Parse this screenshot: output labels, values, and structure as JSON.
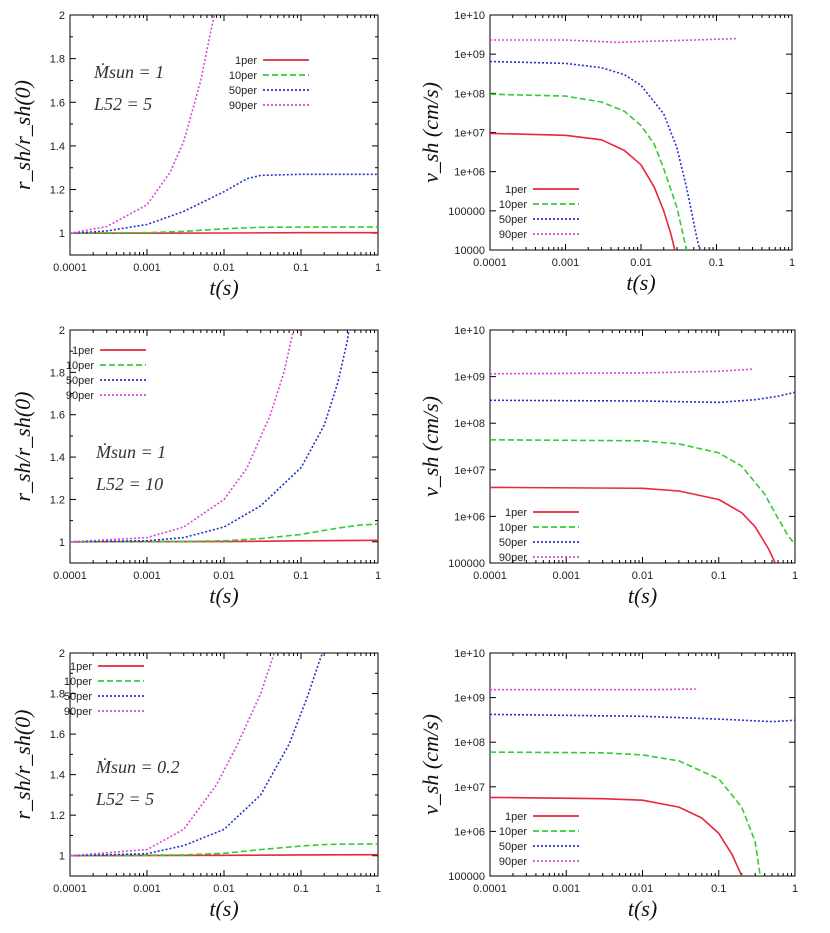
{
  "chart_data": [
    {
      "type": "line",
      "ylabel": "r_sh/r_sh(0)",
      "xlabel": "t(s)",
      "xscale": "log",
      "yscale": "linear",
      "xlim": [
        0.0001,
        1
      ],
      "ylim": [
        0.9,
        2
      ],
      "xticks": [
        "0.0001",
        "0.001",
        "0.01",
        "0.1",
        "1"
      ],
      "yticks": [
        "1",
        "1.2",
        "1.4",
        "1.6",
        "1.8",
        "2"
      ],
      "annotation": [
        "Ṁsun = 1",
        "L52 = 5"
      ],
      "legend": "top-right",
      "series": [
        {
          "name": "1per",
          "color": "#e8283c",
          "dash": "solid",
          "points": [
            [
              0.0001,
              1.0
            ],
            [
              0.001,
              1.0
            ],
            [
              0.01,
              1.001
            ],
            [
              0.1,
              1.002
            ],
            [
              1,
              1.002
            ]
          ]
        },
        {
          "name": "10per",
          "color": "#33cc33",
          "dash": "dash",
          "points": [
            [
              0.0001,
              1.0
            ],
            [
              0.001,
              1.002
            ],
            [
              0.003,
              1.008
            ],
            [
              0.01,
              1.02
            ],
            [
              0.03,
              1.027
            ],
            [
              0.1,
              1.028
            ],
            [
              1,
              1.028
            ]
          ]
        },
        {
          "name": "50per",
          "color": "#2233cc",
          "dash": "dot",
          "points": [
            [
              0.0001,
              1.0
            ],
            [
              0.0003,
              1.01
            ],
            [
              0.001,
              1.04
            ],
            [
              0.003,
              1.1
            ],
            [
              0.01,
              1.19
            ],
            [
              0.02,
              1.25
            ],
            [
              0.03,
              1.265
            ],
            [
              0.1,
              1.27
            ],
            [
              1,
              1.27
            ]
          ]
        },
        {
          "name": "90per",
          "color": "#dd44dd",
          "dash": "dot",
          "points": [
            [
              0.0001,
              1.0
            ],
            [
              0.0003,
              1.03
            ],
            [
              0.001,
              1.13
            ],
            [
              0.002,
              1.28
            ],
            [
              0.003,
              1.42
            ],
            [
              0.005,
              1.7
            ],
            [
              0.0065,
              1.9
            ],
            [
              0.0075,
              2.0
            ]
          ]
        }
      ]
    },
    {
      "type": "line",
      "ylabel": "v_sh (cm/s)",
      "xlabel": "t(s)",
      "xscale": "log",
      "yscale": "log",
      "xlim": [
        0.0001,
        1
      ],
      "ylim": [
        10000,
        10000000000
      ],
      "xticks": [
        "0.0001",
        "0.001",
        "0.01",
        "0.1",
        "1"
      ],
      "yticks": [
        "10000",
        "100000",
        "1e+06",
        "1e+07",
        "1e+08",
        "1e+09",
        "1e+10"
      ],
      "legend": "bottom-left",
      "series": [
        {
          "name": "1per",
          "color": "#e8283c",
          "dash": "solid",
          "points": [
            [
              0.0001,
              9500000.0
            ],
            [
              0.001,
              8500000.0
            ],
            [
              0.003,
              6500000.0
            ],
            [
              0.006,
              3500000.0
            ],
            [
              0.01,
              1500000.0
            ],
            [
              0.015,
              400000.0
            ],
            [
              0.02,
              100000.0
            ],
            [
              0.025,
              25000.0
            ],
            [
              0.028,
              10000.0
            ]
          ]
        },
        {
          "name": "10per",
          "color": "#33cc33",
          "dash": "dash",
          "points": [
            [
              0.0001,
              95000000.0
            ],
            [
              0.001,
              85000000.0
            ],
            [
              0.003,
              60000000.0
            ],
            [
              0.006,
              35000000.0
            ],
            [
              0.01,
              15000000.0
            ],
            [
              0.015,
              5000000.0
            ],
            [
              0.02,
              1200000.0
            ],
            [
              0.03,
              120000.0
            ],
            [
              0.04,
              10000.0
            ]
          ]
        },
        {
          "name": "50per",
          "color": "#2233cc",
          "dash": "dot",
          "points": [
            [
              0.0001,
              650000000.0
            ],
            [
              0.001,
              580000000.0
            ],
            [
              0.003,
              450000000.0
            ],
            [
              0.006,
              300000000.0
            ],
            [
              0.01,
              160000000.0
            ],
            [
              0.02,
              30000000.0
            ],
            [
              0.03,
              4000000.0
            ],
            [
              0.04,
              400000.0
            ],
            [
              0.055,
              20000.0
            ],
            [
              0.06,
              10000.0
            ]
          ]
        },
        {
          "name": "90per",
          "color": "#dd44dd",
          "dash": "dot",
          "points": [
            [
              0.0001,
              2300000000.0
            ],
            [
              0.001,
              2300000000.0
            ],
            [
              0.005,
              2000000000.0
            ],
            [
              0.01,
              2100000000.0
            ],
            [
              0.05,
              2300000000.0
            ],
            [
              0.18,
              2500000000.0
            ]
          ]
        }
      ]
    },
    {
      "type": "line",
      "ylabel": "r_sh/r_sh(0)",
      "xlabel": "t(s)",
      "xscale": "log",
      "yscale": "linear",
      "xlim": [
        0.0001,
        1
      ],
      "ylim": [
        0.9,
        2
      ],
      "xticks": [
        "0.0001",
        "0.001",
        "0.01",
        "0.1",
        "1"
      ],
      "yticks": [
        "1",
        "1.2",
        "1.4",
        "1.6",
        "1.8",
        "2"
      ],
      "annotation": [
        "Ṁsun = 1",
        "L52 = 10"
      ],
      "legend": "top-left",
      "series": [
        {
          "name": "1per",
          "color": "#e8283c",
          "dash": "solid",
          "points": [
            [
              0.0001,
              1.0
            ],
            [
              0.01,
              1.001
            ],
            [
              0.1,
              1.005
            ],
            [
              1,
              1.007
            ]
          ]
        },
        {
          "name": "10per",
          "color": "#33cc33",
          "dash": "dash",
          "points": [
            [
              0.0001,
              1.0
            ],
            [
              0.003,
              1.002
            ],
            [
              0.01,
              1.005
            ],
            [
              0.03,
              1.015
            ],
            [
              0.1,
              1.035
            ],
            [
              0.3,
              1.065
            ],
            [
              0.6,
              1.08
            ],
            [
              1,
              1.083
            ]
          ]
        },
        {
          "name": "50per",
          "color": "#2233cc",
          "dash": "dot",
          "points": [
            [
              0.0001,
              1.0
            ],
            [
              0.001,
              1.005
            ],
            [
              0.003,
              1.02
            ],
            [
              0.01,
              1.07
            ],
            [
              0.03,
              1.17
            ],
            [
              0.1,
              1.35
            ],
            [
              0.2,
              1.55
            ],
            [
              0.3,
              1.75
            ],
            [
              0.4,
              1.95
            ],
            [
              0.42,
              2.0
            ]
          ]
        },
        {
          "name": "90per",
          "color": "#dd44dd",
          "dash": "dot",
          "points": [
            [
              0.0001,
              1.0
            ],
            [
              0.001,
              1.02
            ],
            [
              0.003,
              1.07
            ],
            [
              0.01,
              1.2
            ],
            [
              0.02,
              1.35
            ],
            [
              0.04,
              1.6
            ],
            [
              0.06,
              1.8
            ],
            [
              0.08,
              2.0
            ]
          ]
        }
      ]
    },
    {
      "type": "line",
      "ylabel": "v_sh (cm/s)",
      "xlabel": "t(s)",
      "xscale": "log",
      "yscale": "log",
      "xlim": [
        0.0001,
        1
      ],
      "ylim": [
        100000,
        10000000000
      ],
      "xticks": [
        "0.0001",
        "0.001",
        "0.01",
        "0.1",
        "1"
      ],
      "yticks": [
        "100000",
        "1e+06",
        "1e+07",
        "1e+08",
        "1e+09",
        "1e+10"
      ],
      "legend": "bottom-left",
      "series": [
        {
          "name": "1per",
          "color": "#e8283c",
          "dash": "solid",
          "points": [
            [
              0.0001,
              4200000.0
            ],
            [
              0.01,
              4000000.0
            ],
            [
              0.03,
              3500000.0
            ],
            [
              0.1,
              2300000.0
            ],
            [
              0.2,
              1200000.0
            ],
            [
              0.3,
              600000.0
            ],
            [
              0.45,
              200000.0
            ],
            [
              0.55,
              100000.0
            ]
          ]
        },
        {
          "name": "10per",
          "color": "#33cc33",
          "dash": "dash",
          "points": [
            [
              0.0001,
              44000000.0
            ],
            [
              0.01,
              42000000.0
            ],
            [
              0.03,
              36000000.0
            ],
            [
              0.1,
              23000000.0
            ],
            [
              0.2,
              12000000.0
            ],
            [
              0.4,
              3000000.0
            ],
            [
              0.6,
              900000.0
            ],
            [
              0.8,
              400000.0
            ],
            [
              1,
              250000.0
            ]
          ]
        },
        {
          "name": "50per",
          "color": "#2233cc",
          "dash": "dot",
          "points": [
            [
              0.0001,
              310000000.0
            ],
            [
              0.01,
              300000000.0
            ],
            [
              0.1,
              280000000.0
            ],
            [
              0.3,
              320000000.0
            ],
            [
              0.6,
              380000000.0
            ],
            [
              1,
              460000000.0
            ]
          ]
        },
        {
          "name": "90per",
          "color": "#dd44dd",
          "dash": "dot",
          "points": [
            [
              0.0001,
              1150000000.0
            ],
            [
              0.01,
              1200000000.0
            ],
            [
              0.1,
              1300000000.0
            ],
            [
              0.28,
              1450000000.0
            ]
          ]
        }
      ]
    },
    {
      "type": "line",
      "ylabel": "r_sh/r_sh(0)",
      "xlabel": "t(s)",
      "xscale": "log",
      "yscale": "linear",
      "xlim": [
        0.0001,
        1
      ],
      "ylim": [
        0.9,
        2
      ],
      "xticks": [
        "0.0001",
        "0.001",
        "0.01",
        "0.1",
        "1"
      ],
      "yticks": [
        "1",
        "1.2",
        "1.4",
        "1.6",
        "1.8",
        "2"
      ],
      "annotation": [
        "Ṁsun = 0.2",
        "L52 = 5"
      ],
      "legend": "top-left",
      "series": [
        {
          "name": "1per",
          "color": "#e8283c",
          "dash": "solid",
          "points": [
            [
              0.0001,
              1.0
            ],
            [
              0.01,
              1.002
            ],
            [
              0.1,
              1.004
            ],
            [
              1,
              1.005
            ]
          ]
        },
        {
          "name": "10per",
          "color": "#33cc33",
          "dash": "dash",
          "points": [
            [
              0.0001,
              1.0
            ],
            [
              0.003,
              1.004
            ],
            [
              0.01,
              1.012
            ],
            [
              0.03,
              1.03
            ],
            [
              0.1,
              1.048
            ],
            [
              0.2,
              1.055
            ],
            [
              0.3,
              1.057
            ],
            [
              1,
              1.058
            ]
          ]
        },
        {
          "name": "50per",
          "color": "#2233cc",
          "dash": "dot",
          "points": [
            [
              0.0001,
              1.0
            ],
            [
              0.001,
              1.01
            ],
            [
              0.003,
              1.05
            ],
            [
              0.01,
              1.13
            ],
            [
              0.03,
              1.3
            ],
            [
              0.07,
              1.55
            ],
            [
              0.12,
              1.78
            ],
            [
              0.17,
              1.95
            ],
            [
              0.19,
              2.0
            ]
          ]
        },
        {
          "name": "90per",
          "color": "#dd44dd",
          "dash": "dot",
          "points": [
            [
              0.0001,
              1.0
            ],
            [
              0.001,
              1.03
            ],
            [
              0.003,
              1.13
            ],
            [
              0.008,
              1.35
            ],
            [
              0.015,
              1.55
            ],
            [
              0.03,
              1.8
            ],
            [
              0.045,
              2.0
            ]
          ]
        }
      ]
    },
    {
      "type": "line",
      "ylabel": "v_sh (cm/s)",
      "xlabel": "t(s)",
      "xscale": "log",
      "yscale": "log",
      "xlim": [
        0.0001,
        1
      ],
      "ylim": [
        100000,
        10000000000
      ],
      "xticks": [
        "0.0001",
        "0.001",
        "0.01",
        "0.1",
        "1"
      ],
      "yticks": [
        "100000",
        "1e+06",
        "1e+07",
        "1e+08",
        "1e+09",
        "1e+10"
      ],
      "legend": "bottom-left",
      "series": [
        {
          "name": "1per",
          "color": "#e8283c",
          "dash": "solid",
          "points": [
            [
              0.0001,
              5800000.0
            ],
            [
              0.003,
              5400000.0
            ],
            [
              0.01,
              5000000.0
            ],
            [
              0.03,
              3500000.0
            ],
            [
              0.06,
              2000000.0
            ],
            [
              0.1,
              900000.0
            ],
            [
              0.15,
              300000.0
            ],
            [
              0.2,
              100000.0
            ]
          ]
        },
        {
          "name": "10per",
          "color": "#33cc33",
          "dash": "dash",
          "points": [
            [
              0.0001,
              60000000.0
            ],
            [
              0.003,
              58000000.0
            ],
            [
              0.01,
              52000000.0
            ],
            [
              0.03,
              38000000.0
            ],
            [
              0.1,
              15000000.0
            ],
            [
              0.2,
              3500000.0
            ],
            [
              0.3,
              600000.0
            ],
            [
              0.35,
              100000.0
            ]
          ]
        },
        {
          "name": "50per",
          "color": "#2233cc",
          "dash": "dot",
          "points": [
            [
              0.0001,
              420000000.0
            ],
            [
              0.01,
              380000000.0
            ],
            [
              0.1,
              330000000.0
            ],
            [
              0.5,
              290000000.0
            ],
            [
              1,
              310000000.0
            ]
          ]
        },
        {
          "name": "90per",
          "color": "#dd44dd",
          "dash": "dot",
          "points": [
            [
              0.0001,
              1500000000.0
            ],
            [
              0.01,
              1500000000.0
            ],
            [
              0.05,
              1550000000.0
            ]
          ]
        }
      ]
    }
  ]
}
